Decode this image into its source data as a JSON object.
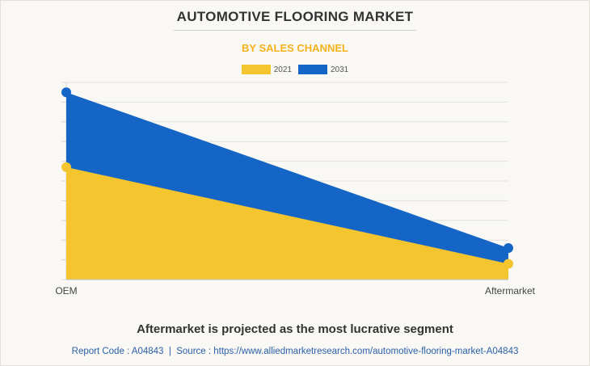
{
  "header": {
    "title": "AUTOMOTIVE FLOORING MARKET",
    "subtitle": "BY SALES CHANNEL"
  },
  "colors": {
    "series_2021": "#f4c52e",
    "series_2031": "#1565c7",
    "subtitle": "#f2b21c",
    "footer": "#2b5fa8"
  },
  "caption": "Aftermarket is projected as the most lucrative segment",
  "footer": {
    "report_code": "Report Code : A04843",
    "separator": "|",
    "source": "Source : https://www.alliedmarketresearch.com/automotive-flooring-market-A04843"
  },
  "chart_data": {
    "type": "area",
    "categories": [
      "OEM",
      "Aftermarket"
    ],
    "series": [
      {
        "name": "2021",
        "values": [
          5.7,
          0.8
        ]
      },
      {
        "name": "2031",
        "values": [
          9.5,
          1.6
        ]
      }
    ],
    "ylim": [
      0,
      10
    ],
    "grid": true,
    "legend": "top-center",
    "y_tick_labels_shown": false
  }
}
